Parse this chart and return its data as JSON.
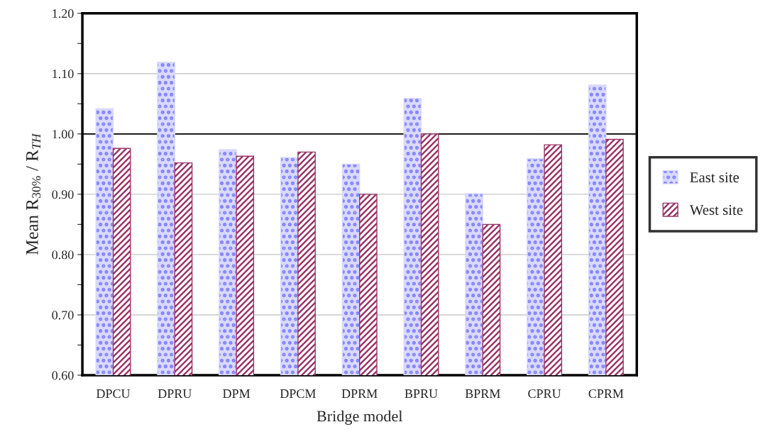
{
  "chart_data": {
    "type": "bar",
    "xlabel": "Bridge model",
    "ylabel": "Mean R$_{30%}$ / R$_{TH}$",
    "categories": [
      "DPCU",
      "DPRU",
      "DPM",
      "DPCM",
      "DPRM",
      "BPRU",
      "BPRM",
      "CPRU",
      "CPRM"
    ],
    "series": [
      {
        "name": "East site",
        "color": "#d9d9ff",
        "values": [
          1.042,
          1.119,
          0.974,
          0.961,
          0.95,
          1.059,
          0.901,
          0.959,
          1.081
        ]
      },
      {
        "name": "West site",
        "color": "#993366",
        "values": [
          0.976,
          0.952,
          0.963,
          0.97,
          0.9,
          1.0,
          0.85,
          0.982,
          0.991
        ]
      }
    ],
    "ylim": [
      0.6,
      1.2
    ],
    "yticks": [
      {
        "value": 0.6,
        "label": "0.60"
      },
      {
        "value": 0.65,
        "label": null
      },
      {
        "value": 0.7,
        "label": "0.70"
      },
      {
        "value": 0.75,
        "label": null
      },
      {
        "value": 0.8,
        "label": "0.80"
      },
      {
        "value": 0.85,
        "label": null
      },
      {
        "value": 0.9,
        "label": "0.90"
      },
      {
        "value": 0.95,
        "label": null
      },
      {
        "value": 1.0,
        "label": "1.00"
      },
      {
        "value": 1.05,
        "label": null
      },
      {
        "value": 1.1,
        "label": "1.10"
      },
      {
        "value": 1.15,
        "label": null
      },
      {
        "value": 1.2,
        "label": "1.20"
      }
    ],
    "ref_lines": [
      {
        "axis": "y",
        "value": 1.0,
        "color": "#000000"
      }
    ],
    "grid": "y",
    "legend": "right"
  }
}
